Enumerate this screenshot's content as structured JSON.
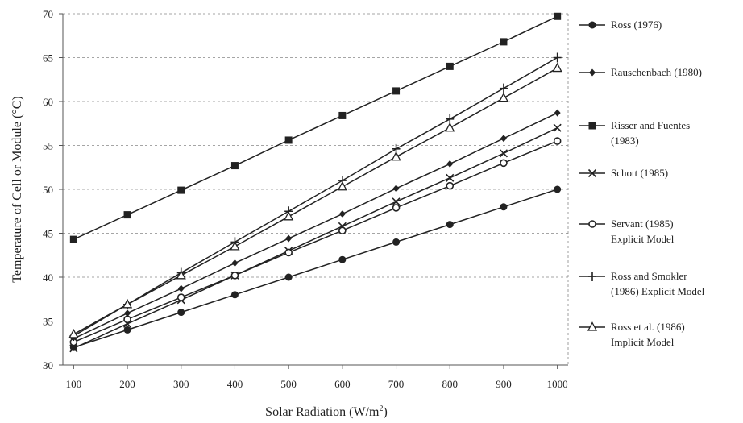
{
  "chart_data": {
    "type": "line",
    "xlabel": "Solar Radiation (W/m",
    "xlabel_sup": "2",
    "xlabel_end": ")",
    "ylabel": "Temperature of Cell or Module (°C)",
    "xlim": [
      100,
      1000
    ],
    "ylim": [
      30,
      70
    ],
    "x_ticks": [
      100,
      200,
      300,
      400,
      500,
      600,
      700,
      800,
      900,
      1000
    ],
    "y_ticks": [
      30,
      35,
      40,
      45,
      50,
      55,
      60,
      65,
      70
    ],
    "grid": "dashed horizontal gridlines",
    "legend_position": "right",
    "x": [
      100,
      200,
      300,
      400,
      500,
      600,
      700,
      800,
      900,
      1000
    ],
    "series": [
      {
        "name": "Ross (1976)",
        "lines": [
          "Ross (1976)"
        ],
        "marker": "circle-filled",
        "values": [
          32,
          34,
          36,
          38,
          40,
          42,
          44,
          46,
          48,
          50
        ]
      },
      {
        "name": "Rauschenbach (1980)",
        "lines": [
          "Rauschenbach (1980)"
        ],
        "marker": "diamond",
        "values": [
          33,
          35.9,
          38.7,
          41.6,
          44.4,
          47.2,
          50.1,
          52.9,
          55.8,
          58.7
        ]
      },
      {
        "name": "Risser and Fuentes (1983)",
        "lines": [
          "Risser and Fuentes",
          "(1983)"
        ],
        "marker": "square",
        "values": [
          44.3,
          47.1,
          49.9,
          52.7,
          55.6,
          58.4,
          61.2,
          64.0,
          66.8,
          69.7
        ]
      },
      {
        "name": "Schott (1985)",
        "lines": [
          "Schott (1985)"
        ],
        "marker": "x",
        "values": [
          31.9,
          34.7,
          37.4,
          40.2,
          43.0,
          45.8,
          48.6,
          51.3,
          54.1,
          57.0
        ]
      },
      {
        "name": "Servant (1985) Explicit Model",
        "lines": [
          "Servant (1985)",
          "Explicit Model"
        ],
        "marker": "circle-open",
        "values": [
          32.6,
          35.2,
          37.7,
          40.2,
          42.8,
          45.3,
          47.9,
          50.4,
          53.0,
          55.5
        ]
      },
      {
        "name": "Ross and Smokler (1986) Explicit Model",
        "lines": [
          "Ross and Smokler",
          "(1986) Explicit Model"
        ],
        "marker": "plus",
        "values": [
          33.3,
          36.9,
          40.5,
          44.0,
          47.5,
          51.0,
          54.6,
          58.0,
          61.5,
          65.0
        ]
      },
      {
        "name": "Ross et al. (1986) Implicit Model",
        "lines": [
          "Ross et al. (1986)",
          "Implicit Model"
        ],
        "marker": "triangle-open",
        "values": [
          33.5,
          36.9,
          40.2,
          43.5,
          46.9,
          50.3,
          53.7,
          57.0,
          60.4,
          63.8
        ]
      }
    ]
  }
}
